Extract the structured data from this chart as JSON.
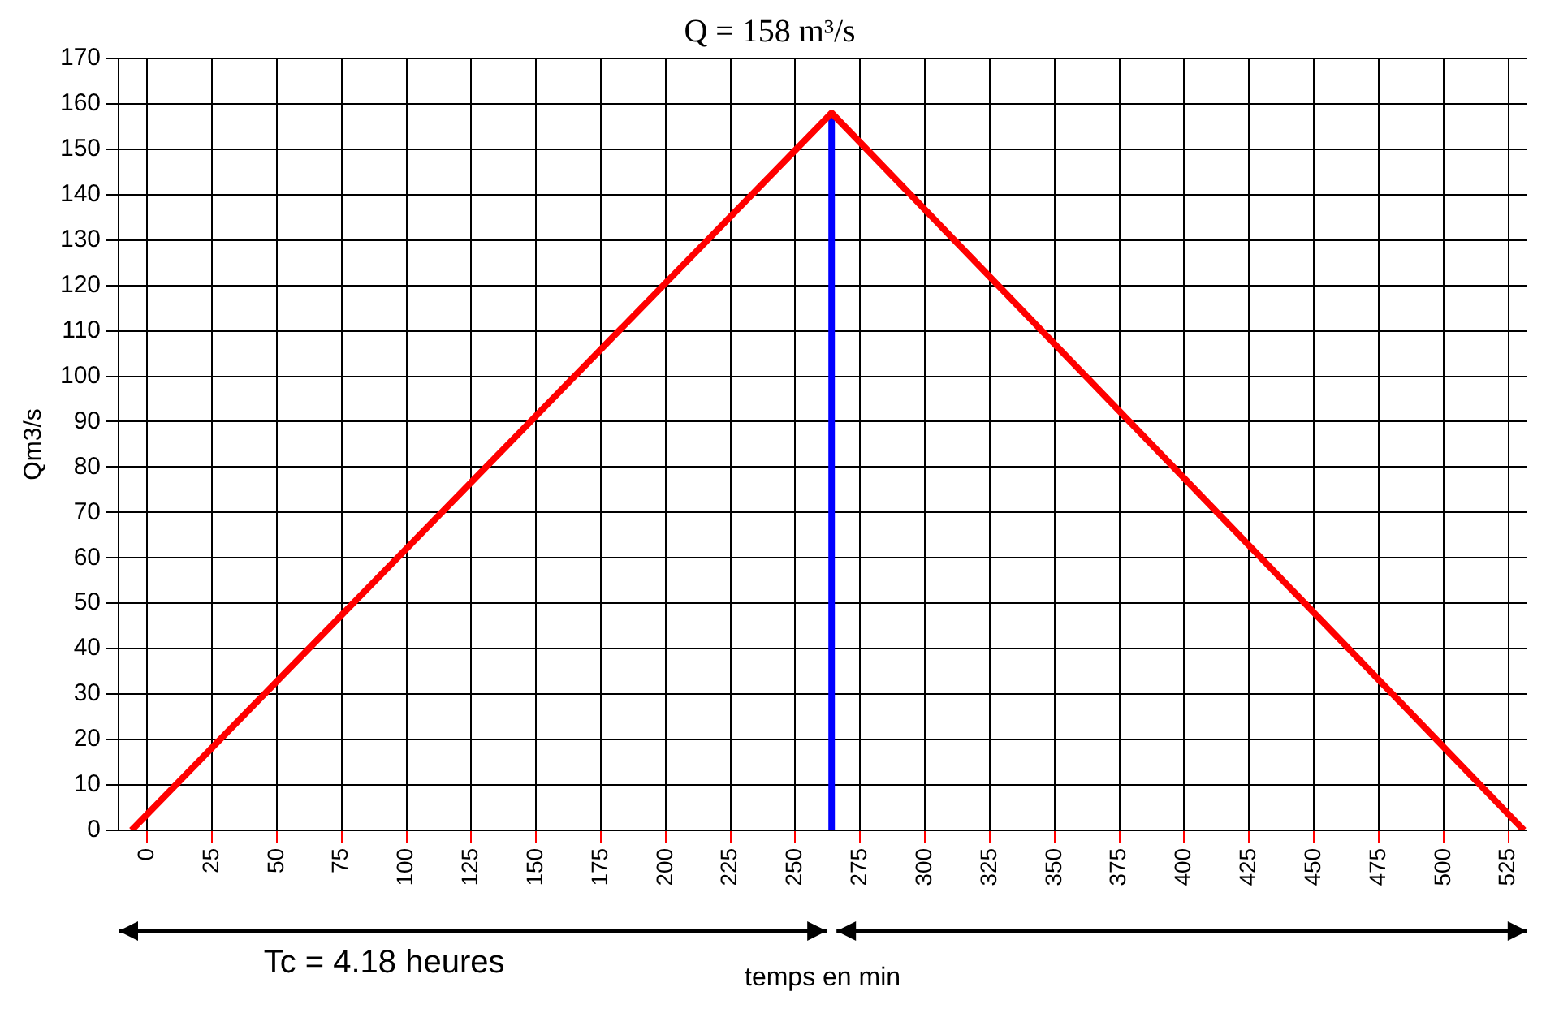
{
  "chart_data": {
    "type": "line",
    "title": "Q = 158 m³/s",
    "xlabel": "temps en min",
    "ylabel": "Qm3/s",
    "annotations": [
      "Tc = 4.18 heures"
    ],
    "xlim": [
      -11,
      532
    ],
    "xticks": [
      0,
      25,
      50,
      75,
      100,
      125,
      150,
      175,
      200,
      225,
      250,
      275,
      300,
      325,
      350,
      375,
      400,
      425,
      450,
      475,
      500,
      525
    ],
    "ylim": [
      0,
      170
    ],
    "yticks": [
      0,
      10,
      20,
      30,
      40,
      50,
      60,
      70,
      80,
      90,
      100,
      110,
      120,
      130,
      140,
      150,
      160,
      170
    ],
    "grid": true,
    "legend": false,
    "marker": "none",
    "line_style": "solid",
    "series": [
      {
        "color": "#ff0000",
        "x": [
          -6,
          264,
          531
        ],
        "values": [
          0,
          158,
          0
        ]
      },
      {
        "color": "#0000ff",
        "x": [
          264,
          264
        ],
        "values": [
          0,
          158
        ]
      }
    ]
  }
}
